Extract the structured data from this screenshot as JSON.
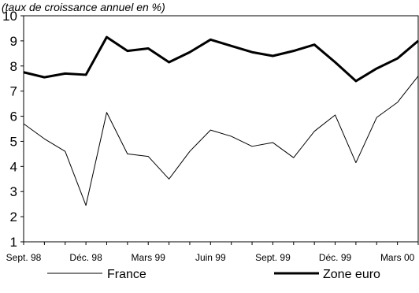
{
  "chart_data": {
    "type": "line",
    "subtitle": "(taux de croissance annuel en %)",
    "ylim": [
      1,
      10
    ],
    "yticks": [
      "1",
      "2",
      "3",
      "4",
      "5",
      "6",
      "7",
      "8",
      "9",
      "10"
    ],
    "x_tick_labels": [
      {
        "index": 0,
        "label": "Sept. 98"
      },
      {
        "index": 3,
        "label": "Déc. 98"
      },
      {
        "index": 6,
        "label": "Mars 99"
      },
      {
        "index": 9,
        "label": "Juin 99"
      },
      {
        "index": 12,
        "label": "Sept. 99"
      },
      {
        "index": 15,
        "label": "Déc. 99"
      },
      {
        "index": 18,
        "label": "Mars 00"
      }
    ],
    "x_count": 20,
    "grid": false,
    "legend_placement": "bottom",
    "series": [
      {
        "name": "France",
        "color": "#000000",
        "style": "thin",
        "values": [
          5.7,
          5.1,
          4.6,
          2.45,
          6.15,
          4.5,
          4.4,
          3.5,
          4.6,
          5.45,
          5.2,
          4.8,
          4.95,
          4.35,
          5.4,
          6.05,
          4.15,
          5.95,
          6.55,
          7.6
        ]
      },
      {
        "name": "Zone euro",
        "color": "#000000",
        "style": "thick",
        "values": [
          7.75,
          7.55,
          7.7,
          7.65,
          9.15,
          8.6,
          8.7,
          8.15,
          8.55,
          9.05,
          8.8,
          8.55,
          8.4,
          8.6,
          8.85,
          8.15,
          7.4,
          7.9,
          8.3,
          9.0
        ]
      }
    ]
  }
}
